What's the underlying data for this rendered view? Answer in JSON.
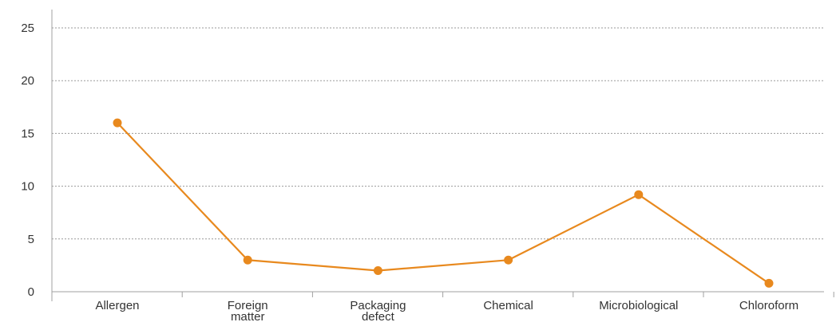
{
  "chart_data": {
    "type": "line",
    "categories": [
      [
        "Allergen"
      ],
      [
        "Foreign",
        "matter"
      ],
      [
        "Packaging",
        "defect"
      ],
      [
        "Chemical"
      ],
      [
        "Microbiological"
      ],
      [
        "Chloroform"
      ]
    ],
    "series": [
      {
        "values": [
          16,
          3,
          2,
          3,
          9.2,
          0.8
        ],
        "color": "#E8891E"
      }
    ],
    "ylim": [
      0,
      25
    ],
    "yticks": [
      0,
      5,
      10,
      15,
      20,
      25
    ],
    "grid": true,
    "legend": "none"
  }
}
